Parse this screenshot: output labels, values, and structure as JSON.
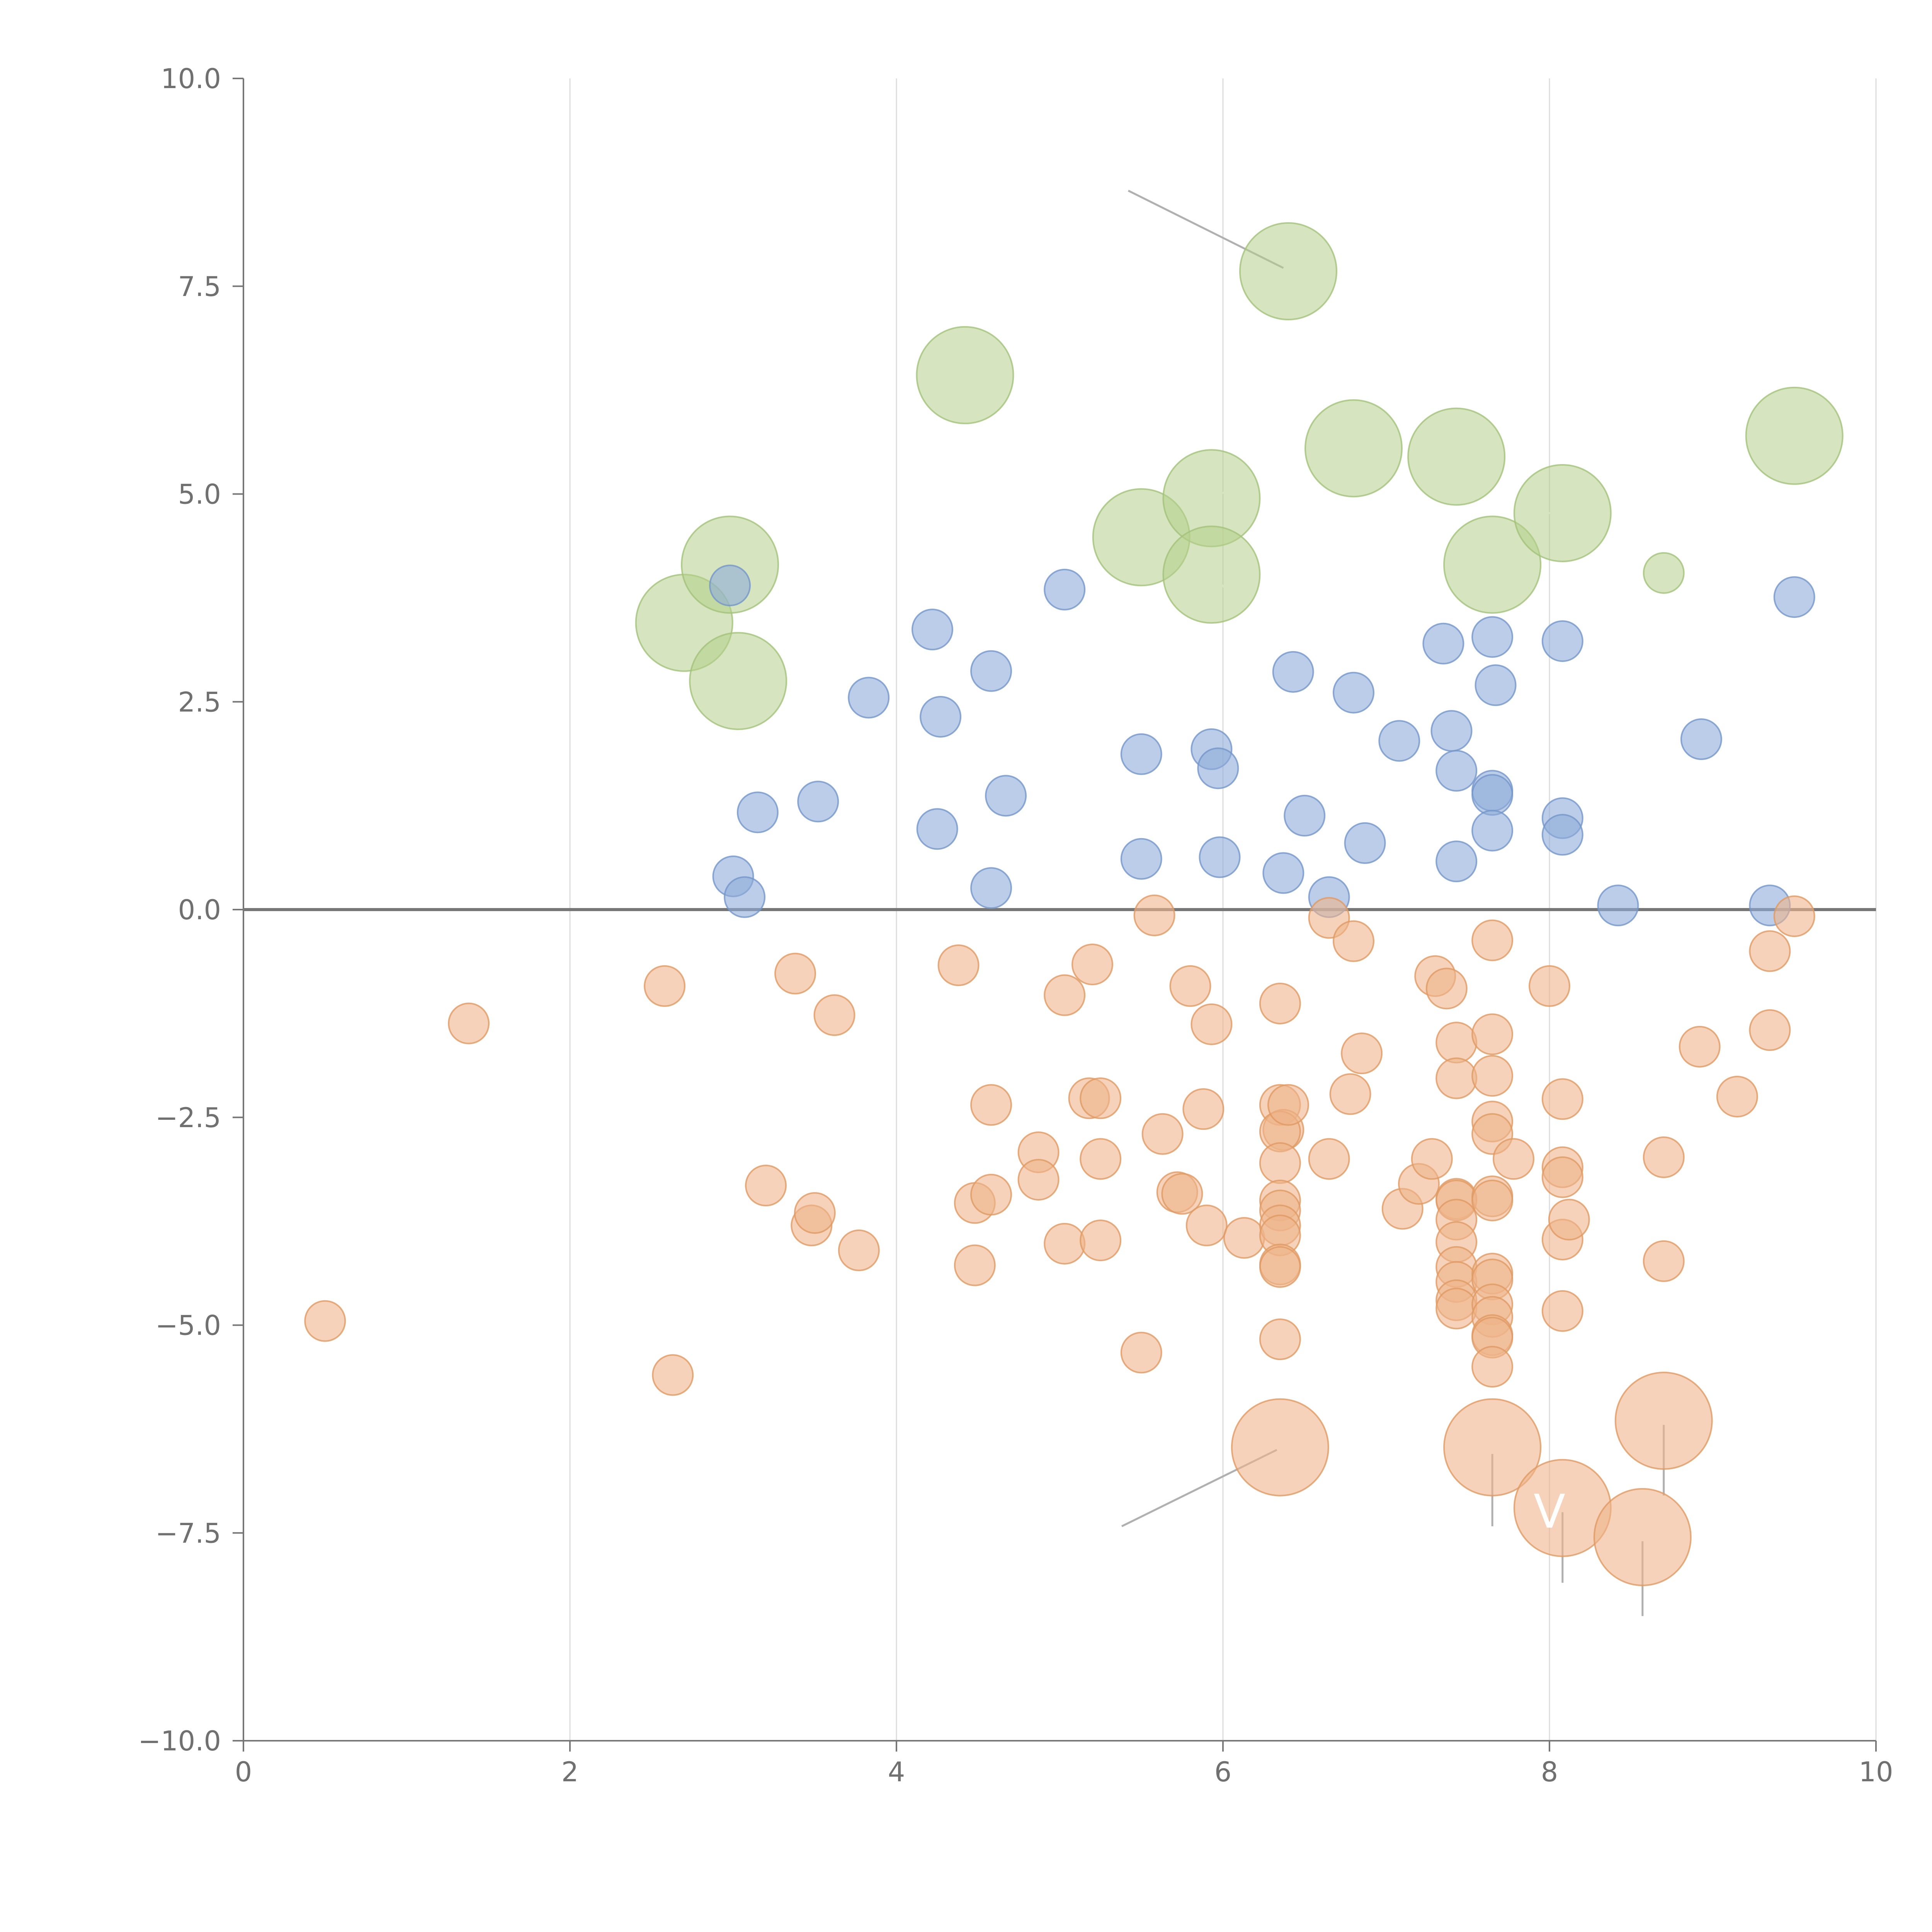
{
  "chart_data": {
    "type": "scatter",
    "title": "",
    "xlabel": "",
    "ylabel": "",
    "xlim": [
      0,
      10
    ],
    "ylim": [
      -10,
      10
    ],
    "x_ticks": [
      0,
      2,
      4,
      6,
      8,
      10
    ],
    "x_tick_labels": [
      "0",
      "2",
      "4",
      "6",
      "8",
      "10"
    ],
    "y_ticks": [
      -10,
      -7.5,
      -5,
      -2.5,
      0,
      2.5,
      5,
      7.5,
      10
    ],
    "y_tick_labels": [
      "−10.0",
      "−7.5",
      "−5.0",
      "−2.5",
      "0.0",
      "2.5",
      "5.0",
      "7.5",
      "10.0"
    ],
    "grid": "vertical lines at x ticks",
    "reference_line": {
      "y": 0,
      "color": "#777777"
    },
    "series": [
      {
        "name": "green",
        "color": "#b5d08b",
        "stroke": "#a3c27a",
        "opacity": 0.55,
        "size": "large",
        "points": [
          {
            "x": 2.7,
            "y": 3.45
          },
          {
            "x": 2.98,
            "y": 4.15
          },
          {
            "x": 3.03,
            "y": 2.75
          },
          {
            "x": 4.42,
            "y": 6.43
          },
          {
            "x": 5.5,
            "y": 4.48
          },
          {
            "x": 5.93,
            "y": 4.95
          },
          {
            "x": 5.93,
            "y": 4.03
          },
          {
            "x": 6.4,
            "y": 7.68
          },
          {
            "x": 6.8,
            "y": 5.55
          },
          {
            "x": 7.43,
            "y": 5.45
          },
          {
            "x": 7.65,
            "y": 4.15
          },
          {
            "x": 8.08,
            "y": 4.77
          },
          {
            "x": 9.5,
            "y": 5.7
          },
          {
            "x": 8.7,
            "y": 4.05,
            "size": "small"
          }
        ]
      },
      {
        "name": "blue",
        "color": "#8eabd8",
        "stroke": "#7496c9",
        "opacity": 0.6,
        "size": "small",
        "points": [
          {
            "x": 2.98,
            "y": 3.9
          },
          {
            "x": 3.15,
            "y": 1.17
          },
          {
            "x": 3.0,
            "y": 0.4
          },
          {
            "x": 3.07,
            "y": 0.15
          },
          {
            "x": 3.52,
            "y": 1.3
          },
          {
            "x": 3.83,
            "y": 2.55
          },
          {
            "x": 4.22,
            "y": 3.37
          },
          {
            "x": 4.27,
            "y": 2.32
          },
          {
            "x": 4.25,
            "y": 0.97
          },
          {
            "x": 4.58,
            "y": 2.87
          },
          {
            "x": 4.67,
            "y": 1.37
          },
          {
            "x": 4.58,
            "y": 0.26
          },
          {
            "x": 5.03,
            "y": 3.85
          },
          {
            "x": 5.5,
            "y": 1.87
          },
          {
            "x": 5.5,
            "y": 0.61
          },
          {
            "x": 5.93,
            "y": 1.93
          },
          {
            "x": 5.97,
            "y": 1.7
          },
          {
            "x": 5.98,
            "y": 0.63
          },
          {
            "x": 6.43,
            "y": 2.86
          },
          {
            "x": 6.37,
            "y": 0.44
          },
          {
            "x": 6.5,
            "y": 1.13
          },
          {
            "x": 6.65,
            "y": 0.15
          },
          {
            "x": 6.8,
            "y": 2.61
          },
          {
            "x": 6.87,
            "y": 0.8
          },
          {
            "x": 7.08,
            "y": 2.03
          },
          {
            "x": 7.35,
            "y": 3.2
          },
          {
            "x": 7.4,
            "y": 2.15
          },
          {
            "x": 7.43,
            "y": 1.67
          },
          {
            "x": 7.43,
            "y": 0.58
          },
          {
            "x": 7.65,
            "y": 3.28
          },
          {
            "x": 7.67,
            "y": 2.7
          },
          {
            "x": 7.65,
            "y": 1.43
          },
          {
            "x": 7.65,
            "y": 1.38
          },
          {
            "x": 7.65,
            "y": 0.95
          },
          {
            "x": 8.08,
            "y": 3.23
          },
          {
            "x": 8.08,
            "y": 1.1
          },
          {
            "x": 8.08,
            "y": 0.9
          },
          {
            "x": 8.42,
            "y": 0.05
          },
          {
            "x": 8.93,
            "y": 2.05
          },
          {
            "x": 9.35,
            "y": 0.05
          },
          {
            "x": 9.5,
            "y": 3.76
          }
        ]
      },
      {
        "name": "orange",
        "color": "#eeb48a",
        "stroke": "#e09a63",
        "opacity": 0.6,
        "size": "small",
        "points": [
          {
            "x": 0.5,
            "y": -4.95
          },
          {
            "x": 1.38,
            "y": -1.37
          },
          {
            "x": 2.58,
            "y": -0.92
          },
          {
            "x": 2.63,
            "y": -5.6
          },
          {
            "x": 3.2,
            "y": -3.32
          },
          {
            "x": 3.38,
            "y": -0.77
          },
          {
            "x": 3.48,
            "y": -3.8
          },
          {
            "x": 3.5,
            "y": -3.65
          },
          {
            "x": 3.62,
            "y": -1.27
          },
          {
            "x": 3.77,
            "y": -4.1
          },
          {
            "x": 4.38,
            "y": -0.67
          },
          {
            "x": 4.48,
            "y": -3.53
          },
          {
            "x": 4.48,
            "y": -4.28
          },
          {
            "x": 4.58,
            "y": -2.35
          },
          {
            "x": 4.58,
            "y": -3.43
          },
          {
            "x": 4.87,
            "y": -2.92
          },
          {
            "x": 4.87,
            "y": -3.25
          },
          {
            "x": 5.03,
            "y": -1.03
          },
          {
            "x": 5.03,
            "y": -4.02
          },
          {
            "x": 5.18,
            "y": -2.27
          },
          {
            "x": 5.2,
            "y": -0.66
          },
          {
            "x": 5.25,
            "y": -2.27
          },
          {
            "x": 5.25,
            "y": -3.0
          },
          {
            "x": 5.25,
            "y": -3.98
          },
          {
            "x": 5.5,
            "y": -5.33
          },
          {
            "x": 5.58,
            "y": -0.07
          },
          {
            "x": 5.63,
            "y": -2.7
          },
          {
            "x": 5.72,
            "y": -3.4
          },
          {
            "x": 5.75,
            "y": -3.42
          },
          {
            "x": 5.8,
            "y": -0.92
          },
          {
            "x": 5.88,
            "y": -2.4
          },
          {
            "x": 5.9,
            "y": -3.8
          },
          {
            "x": 5.93,
            "y": -1.38
          },
          {
            "x": 6.13,
            "y": -3.95
          },
          {
            "x": 6.35,
            "y": -1.13
          },
          {
            "x": 6.35,
            "y": -2.35
          },
          {
            "x": 6.37,
            "y": -2.65
          },
          {
            "x": 6.35,
            "y": -2.67
          },
          {
            "x": 6.35,
            "y": -3.05
          },
          {
            "x": 6.35,
            "y": -3.5
          },
          {
            "x": 6.35,
            "y": -3.62
          },
          {
            "x": 6.35,
            "y": -3.8
          },
          {
            "x": 6.35,
            "y": -3.92
          },
          {
            "x": 6.35,
            "y": -4.27
          },
          {
            "x": 6.35,
            "y": -4.3
          },
          {
            "x": 6.35,
            "y": -5.17
          },
          {
            "x": 6.4,
            "y": -2.35
          },
          {
            "x": 6.65,
            "y": -0.1
          },
          {
            "x": 6.65,
            "y": -3.0
          },
          {
            "x": 6.78,
            "y": -2.22
          },
          {
            "x": 6.8,
            "y": -0.38
          },
          {
            "x": 6.85,
            "y": -1.73
          },
          {
            "x": 7.1,
            "y": -3.6
          },
          {
            "x": 7.2,
            "y": -3.3
          },
          {
            "x": 7.28,
            "y": -3.0
          },
          {
            "x": 7.3,
            "y": -0.8
          },
          {
            "x": 7.37,
            "y": -0.95
          },
          {
            "x": 7.43,
            "y": -1.6
          },
          {
            "x": 7.43,
            "y": -2.03
          },
          {
            "x": 7.43,
            "y": -3.48
          },
          {
            "x": 7.43,
            "y": -3.5
          },
          {
            "x": 7.43,
            "y": -3.73
          },
          {
            "x": 7.43,
            "y": -4.0
          },
          {
            "x": 7.43,
            "y": -4.3
          },
          {
            "x": 7.43,
            "y": -4.48
          },
          {
            "x": 7.43,
            "y": -4.7
          },
          {
            "x": 7.43,
            "y": -4.8
          },
          {
            "x": 7.65,
            "y": -0.37
          },
          {
            "x": 7.65,
            "y": -1.5
          },
          {
            "x": 7.65,
            "y": -2.0
          },
          {
            "x": 7.65,
            "y": -2.55
          },
          {
            "x": 7.65,
            "y": -2.7
          },
          {
            "x": 7.65,
            "y": -3.45
          },
          {
            "x": 7.65,
            "y": -3.5
          },
          {
            "x": 7.65,
            "y": -4.38
          },
          {
            "x": 7.65,
            "y": -4.45
          },
          {
            "x": 7.65,
            "y": -4.75
          },
          {
            "x": 7.65,
            "y": -4.9
          },
          {
            "x": 7.65,
            "y": -5.12
          },
          {
            "x": 7.65,
            "y": -5.15
          },
          {
            "x": 7.65,
            "y": -5.5
          },
          {
            "x": 7.78,
            "y": -3.0
          },
          {
            "x": 8.0,
            "y": -0.92
          },
          {
            "x": 8.08,
            "y": -2.28
          },
          {
            "x": 8.08,
            "y": -3.1
          },
          {
            "x": 8.08,
            "y": -3.22
          },
          {
            "x": 8.08,
            "y": -3.97
          },
          {
            "x": 8.08,
            "y": -4.83
          },
          {
            "x": 8.12,
            "y": -3.73
          },
          {
            "x": 8.7,
            "y": -2.98
          },
          {
            "x": 8.7,
            "y": -4.23
          },
          {
            "x": 8.92,
            "y": -1.65
          },
          {
            "x": 9.15,
            "y": -2.25
          },
          {
            "x": 9.35,
            "y": -0.5
          },
          {
            "x": 9.35,
            "y": -1.45
          },
          {
            "x": 9.5,
            "y": -0.08
          },
          {
            "x": 6.35,
            "y": -6.47,
            "size": "large"
          },
          {
            "x": 7.65,
            "y": -6.47,
            "size": "large"
          },
          {
            "x": 8.08,
            "y": -7.2,
            "size": "large"
          },
          {
            "x": 8.57,
            "y": -7.55,
            "size": "large"
          },
          {
            "x": 8.7,
            "y": -6.15,
            "size": "large"
          }
        ]
      }
    ],
    "leader_lines": [
      {
        "x1": 6.37,
        "y1": 7.72,
        "x2": 5.42,
        "y2": 8.65,
        "color": "#b0b0b0"
      },
      {
        "x1": 6.33,
        "y1": -6.5,
        "x2": 5.38,
        "y2": -7.42,
        "color": "#b0b0b0"
      },
      {
        "x1": 7.65,
        "y1": -6.55,
        "x2": 7.65,
        "y2": -7.42,
        "color": "#b0b0b0"
      },
      {
        "x1": 8.08,
        "y1": -7.25,
        "x2": 8.08,
        "y2": -8.1,
        "color": "#b0b0b0"
      },
      {
        "x1": 8.57,
        "y1": -7.6,
        "x2": 8.57,
        "y2": -8.5,
        "color": "#b0b0b0"
      },
      {
        "x1": 8.7,
        "y1": -6.2,
        "x2": 8.7,
        "y2": -7.05,
        "color": "#b0b0b0"
      },
      {
        "x1": 2.7,
        "y1": 3.4,
        "x2": 2.83,
        "y2": 3.2,
        "color": "#ffffff"
      },
      {
        "x1": 2.98,
        "y1": 4.1,
        "x2": 3.08,
        "y2": 4.35,
        "color": "#ffffff"
      },
      {
        "x1": 3.03,
        "y1": 2.7,
        "x2": 3.12,
        "y2": 2.5,
        "color": "#ffffff"
      },
      {
        "x1": 4.42,
        "y1": 6.48,
        "x2": 4.35,
        "y2": 6.65,
        "color": "#ffffff"
      },
      {
        "x1": 5.5,
        "y1": 4.5,
        "x2": 5.42,
        "y2": 4.65,
        "color": "#ffffff"
      },
      {
        "x1": 5.95,
        "y1": 4.97,
        "x2": 6.12,
        "y2": 5.12,
        "color": "#ffffff"
      },
      {
        "x1": 5.95,
        "y1": 4.0,
        "x2": 6.02,
        "y2": 3.85,
        "color": "#ffffff"
      },
      {
        "x1": 6.8,
        "y1": 5.58,
        "x2": 6.65,
        "y2": 5.75,
        "color": "#ffffff"
      },
      {
        "x1": 7.43,
        "y1": 5.48,
        "x2": 7.62,
        "y2": 5.55,
        "color": "#ffffff"
      },
      {
        "x1": 7.65,
        "y1": 4.12,
        "x2": 7.83,
        "y2": 4.02,
        "color": "#ffffff"
      },
      {
        "x1": 8.08,
        "y1": 4.77,
        "x2": 7.9,
        "y2": 4.77,
        "color": "#ffffff"
      },
      {
        "x1": 3.52,
        "y1": 1.3,
        "x2": 3.4,
        "y2": 1.5,
        "color": "#ffffff"
      }
    ],
    "labels": [
      {
        "text": "V",
        "x": 8.0,
        "y": -7.25
      }
    ]
  }
}
